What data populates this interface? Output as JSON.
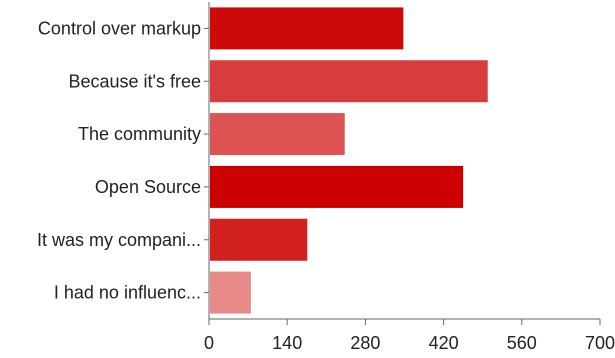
{
  "chart_data": {
    "type": "bar",
    "orientation": "horizontal",
    "categories": [
      "Control over markup",
      "Because it's free",
      "The community",
      "Open Source",
      "It was my compani...",
      "I had no influenc..."
    ],
    "values": [
      348,
      499,
      243,
      455,
      176,
      75
    ],
    "bar_colors": [
      "#cc0a0a",
      "#d83c3c",
      "#dd5252",
      "#cc0000",
      "#d21f1f",
      "#e88a8a"
    ],
    "xlim": [
      0,
      700
    ],
    "xticks": [
      0,
      140,
      280,
      420,
      560,
      700
    ],
    "xtick_labels": [
      "0",
      "140",
      "280",
      "420",
      "560",
      "700"
    ],
    "axis_color": "#666666",
    "grid": false
  }
}
